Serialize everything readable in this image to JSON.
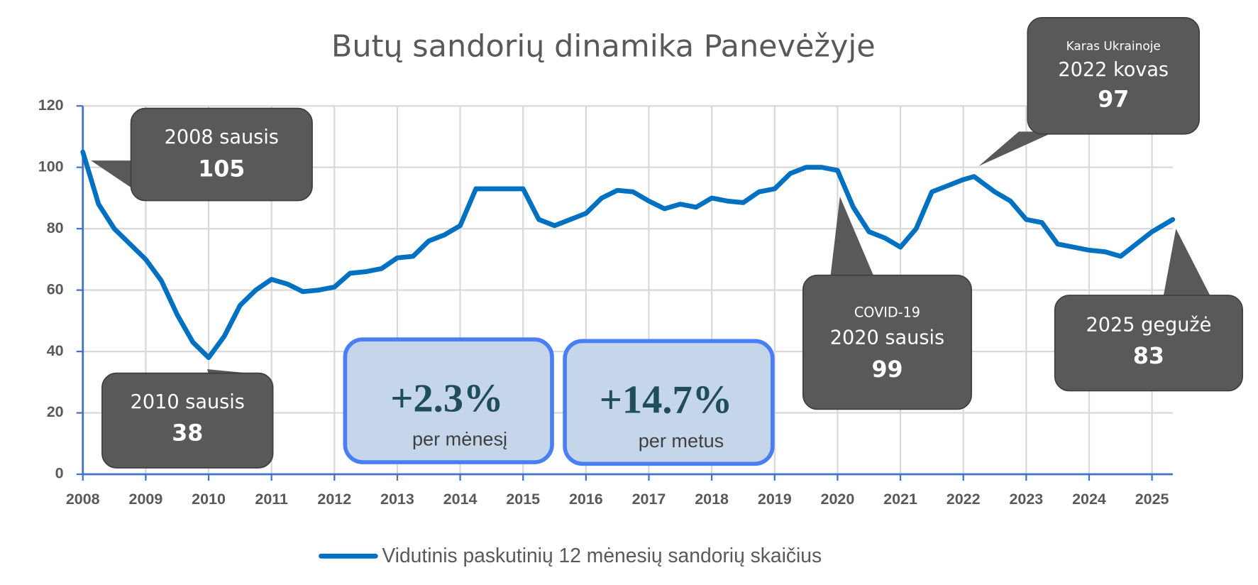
{
  "chart_data": {
    "type": "line",
    "title": "Butų sandorių dinamika Panevėžyje",
    "x": [
      2008,
      2008.25,
      2008.5,
      2008.75,
      2009,
      2009.25,
      2009.5,
      2009.75,
      2010,
      2010.25,
      2010.5,
      2010.75,
      2011,
      2011.25,
      2011.5,
      2011.75,
      2012,
      2012.25,
      2012.5,
      2012.75,
      2013,
      2013.25,
      2013.5,
      2013.75,
      2014,
      2014.25,
      2014.5,
      2014.75,
      2015,
      2015.25,
      2015.5,
      2015.75,
      2016,
      2016.25,
      2016.5,
      2016.75,
      2017,
      2017.25,
      2017.5,
      2017.75,
      2018,
      2018.25,
      2018.5,
      2018.75,
      2019,
      2019.25,
      2019.5,
      2019.75,
      2020,
      2020.25,
      2020.5,
      2020.75,
      2021,
      2021.25,
      2021.5,
      2021.75,
      2022,
      2022.17,
      2022.5,
      2022.75,
      2023,
      2023.25,
      2023.5,
      2023.75,
      2024,
      2024.25,
      2024.5,
      2024.75,
      2025,
      2025.33
    ],
    "series": [
      {
        "name": "Vidutinis paskutinių 12 mėnesių sandorių skaičius",
        "color": "#0070c0",
        "values": [
          105,
          88,
          80,
          75,
          70,
          63,
          52,
          43,
          38,
          45,
          55,
          60,
          63.5,
          62,
          59.5,
          60,
          61,
          65.5,
          66,
          67,
          70.5,
          71,
          76,
          78,
          81,
          93,
          93,
          93,
          93,
          83,
          81,
          83,
          85,
          90,
          92.5,
          92,
          89,
          86.5,
          88,
          87,
          90,
          89,
          88.5,
          92,
          93,
          98,
          100,
          100,
          99,
          87,
          79,
          77,
          74,
          80,
          92,
          94,
          96,
          97,
          92,
          89,
          83,
          82,
          75,
          74,
          73,
          72.5,
          71,
          75,
          79,
          83
        ]
      }
    ],
    "xlim": [
      2008,
      2025.33
    ],
    "ylim": [
      0,
      120
    ],
    "xticks": [
      2008,
      2009,
      2010,
      2011,
      2012,
      2013,
      2014,
      2015,
      2016,
      2017,
      2018,
      2019,
      2020,
      2021,
      2022,
      2023,
      2024,
      2025
    ],
    "yticks": [
      0,
      20,
      40,
      60,
      80,
      100,
      120
    ],
    "grid": true,
    "legend": "bottom",
    "annotations": [
      {
        "lines": [
          "2008 sausis",
          "105"
        ]
      },
      {
        "lines": [
          "2010 sausis",
          "38"
        ]
      },
      {
        "lines": [
          "COVID-19",
          "2020 sausis",
          "99"
        ]
      },
      {
        "lines": [
          "Karas Ukrainoje",
          "2022 kovas",
          "97"
        ]
      },
      {
        "lines": [
          "2025 gegužė",
          "83"
        ]
      }
    ],
    "text_boxes": [
      {
        "value": "+2.3%",
        "caption": "per mėnesį"
      },
      {
        "value": "+14.7%",
        "caption": "per metus"
      }
    ]
  }
}
